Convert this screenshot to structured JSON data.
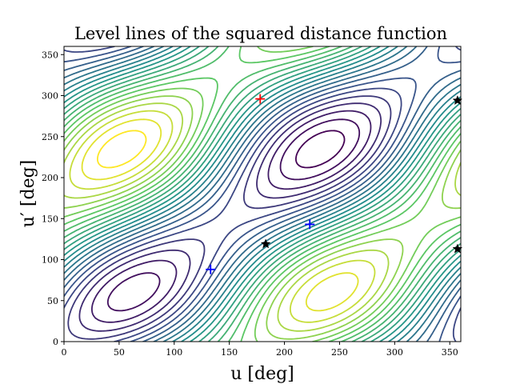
{
  "chart_data": {
    "type": "contour",
    "title": "Level lines of the squared distance function",
    "xlabel": "u [deg]",
    "ylabel": "u′ [deg]",
    "xlim": [
      0,
      360
    ],
    "ylim": [
      0,
      360
    ],
    "xticks": [
      0,
      50,
      100,
      150,
      200,
      250,
      300,
      350
    ],
    "yticks": [
      0,
      50,
      100,
      150,
      200,
      250,
      300,
      350
    ],
    "colormap": [
      "#440154",
      "#3b528b",
      "#21918c",
      "#5ec962",
      "#fde725"
    ],
    "grid": false,
    "markers": [
      {
        "kind": "cross",
        "color": "#ff0000",
        "x": 178,
        "y": 296
      },
      {
        "kind": "cross",
        "color": "#0000ff",
        "x": 133,
        "y": 88
      },
      {
        "kind": "cross",
        "color": "#0000ff",
        "x": 223,
        "y": 143
      },
      {
        "kind": "star",
        "color": "#000000",
        "x": 183,
        "y": 119
      },
      {
        "kind": "star",
        "color": "#000000",
        "x": 357,
        "y": 294
      },
      {
        "kind": "star",
        "color": "#000000",
        "x": 357,
        "y": 113
      }
    ]
  }
}
